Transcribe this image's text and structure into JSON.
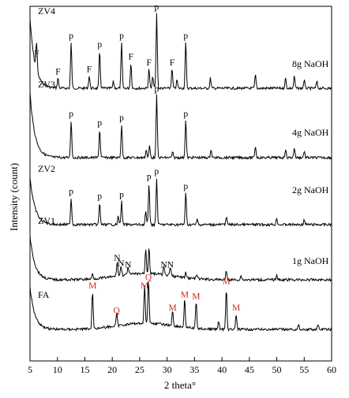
{
  "chart_data": {
    "type": "line",
    "xlabel": "2 theta°",
    "ylabel": "Intensity (count)",
    "xlim": [
      5,
      60
    ],
    "x_ticks": [
      5,
      10,
      15,
      20,
      25,
      30,
      35,
      40,
      45,
      50,
      55,
      60
    ],
    "grid": false,
    "colors": {
      "trace": "#000000",
      "fa_marker": "#cc2a1e",
      "marker": "#000000"
    },
    "series": [
      {
        "name": "ZV4",
        "condition": "8g NaOH",
        "peaks": [
          {
            "x": 6.2,
            "h": 0.34,
            "label": "F"
          },
          {
            "x": 10.1,
            "h": 0.12,
            "label": "F"
          },
          {
            "x": 12.5,
            "h": 0.55,
            "label": "p"
          },
          {
            "x": 15.8,
            "h": 0.15,
            "label": "F"
          },
          {
            "x": 17.7,
            "h": 0.45,
            "label": "p"
          },
          {
            "x": 21.7,
            "h": 0.55,
            "label": "p"
          },
          {
            "x": 23.4,
            "h": 0.3,
            "label": "F"
          },
          {
            "x": 26.7,
            "h": 0.23,
            "label": "F"
          },
          {
            "x": 28.1,
            "h": 0.9,
            "label": "p"
          },
          {
            "x": 30.9,
            "h": 0.23,
            "label": "F"
          },
          {
            "x": 33.4,
            "h": 0.55,
            "label": "p"
          },
          {
            "x": 20.2,
            "h": 0.08,
            "label": ""
          },
          {
            "x": 27.4,
            "h": 0.14,
            "label": ""
          },
          {
            "x": 31.8,
            "h": 0.1,
            "label": ""
          },
          {
            "x": 37.9,
            "h": 0.12,
            "label": ""
          },
          {
            "x": 46.1,
            "h": 0.16,
            "label": ""
          },
          {
            "x": 51.6,
            "h": 0.12,
            "label": ""
          },
          {
            "x": 53.2,
            "h": 0.14,
            "label": ""
          },
          {
            "x": 55.0,
            "h": 0.1,
            "label": ""
          },
          {
            "x": 57.3,
            "h": 0.08,
            "label": ""
          }
        ]
      },
      {
        "name": "ZV3",
        "condition": "4g NaOH",
        "peaks": [
          {
            "x": 12.5,
            "h": 0.45,
            "label": "p"
          },
          {
            "x": 17.7,
            "h": 0.34,
            "label": "p"
          },
          {
            "x": 21.7,
            "h": 0.4,
            "label": "p"
          },
          {
            "x": 28.1,
            "h": 0.75,
            "label": "p"
          },
          {
            "x": 33.4,
            "h": 0.45,
            "label": "p"
          },
          {
            "x": 26.2,
            "h": 0.1,
            "label": ""
          },
          {
            "x": 26.8,
            "h": 0.14,
            "label": ""
          },
          {
            "x": 31.0,
            "h": 0.06,
            "label": ""
          },
          {
            "x": 38.0,
            "h": 0.1,
            "label": ""
          },
          {
            "x": 46.1,
            "h": 0.14,
            "label": ""
          },
          {
            "x": 51.6,
            "h": 0.1,
            "label": ""
          },
          {
            "x": 53.2,
            "h": 0.12,
            "label": ""
          },
          {
            "x": 55.0,
            "h": 0.08,
            "label": ""
          }
        ]
      },
      {
        "name": "ZV2",
        "condition": "2g NaOH",
        "peaks": [
          {
            "x": 12.5,
            "h": 0.32,
            "label": "p"
          },
          {
            "x": 17.7,
            "h": 0.26,
            "label": "p"
          },
          {
            "x": 21.7,
            "h": 0.28,
            "label": "p"
          },
          {
            "x": 26.7,
            "h": 0.5,
            "label": "p"
          },
          {
            "x": 28.1,
            "h": 0.56,
            "label": "p"
          },
          {
            "x": 33.4,
            "h": 0.38,
            "label": "p"
          },
          {
            "x": 21.1,
            "h": 0.1,
            "label": ""
          },
          {
            "x": 26.1,
            "h": 0.15,
            "label": ""
          },
          {
            "x": 35.5,
            "h": 0.06,
            "label": ""
          },
          {
            "x": 40.8,
            "h": 0.1,
            "label": ""
          },
          {
            "x": 50.0,
            "h": 0.08,
            "label": ""
          },
          {
            "x": 55.0,
            "h": 0.06,
            "label": ""
          }
        ]
      },
      {
        "name": "ZV1",
        "condition": "1g NaOH",
        "peaks": [
          {
            "x": 20.9,
            "h": 0.18,
            "label": "N"
          },
          {
            "x": 21.6,
            "h": 0.12,
            "label": "N"
          },
          {
            "x": 22.9,
            "h": 0.1,
            "label": "N"
          },
          {
            "x": 26.1,
            "h": 0.3,
            "label": ""
          },
          {
            "x": 26.7,
            "h": 0.32,
            "label": ""
          },
          {
            "x": 29.4,
            "h": 0.1,
            "label": "N"
          },
          {
            "x": 30.6,
            "h": 0.1,
            "label": "N"
          },
          {
            "x": 16.4,
            "h": 0.06,
            "label": ""
          },
          {
            "x": 33.4,
            "h": 0.06,
            "label": ""
          },
          {
            "x": 35.4,
            "h": 0.05,
            "label": ""
          },
          {
            "x": 40.8,
            "h": 0.1,
            "label": ""
          },
          {
            "x": 43.5,
            "h": 0.05,
            "label": ""
          },
          {
            "x": 50.0,
            "h": 0.06,
            "label": ""
          }
        ]
      },
      {
        "name": "FA",
        "condition": "",
        "peaks": [
          {
            "x": 16.4,
            "h": 0.45,
            "label": "M"
          },
          {
            "x": 20.8,
            "h": 0.15,
            "label": "Q"
          },
          {
            "x": 25.9,
            "h": 0.45,
            "label": "M"
          },
          {
            "x": 26.6,
            "h": 0.55,
            "label": "Q"
          },
          {
            "x": 31.0,
            "h": 0.18,
            "label": "M"
          },
          {
            "x": 33.2,
            "h": 0.34,
            "label": "M"
          },
          {
            "x": 35.3,
            "h": 0.32,
            "label": "M"
          },
          {
            "x": 40.8,
            "h": 0.5,
            "label": "M"
          },
          {
            "x": 42.6,
            "h": 0.18,
            "label": "M"
          },
          {
            "x": 39.4,
            "h": 0.1,
            "label": ""
          },
          {
            "x": 54.0,
            "h": 0.06,
            "label": ""
          },
          {
            "x": 57.5,
            "h": 0.06,
            "label": ""
          }
        ]
      }
    ]
  }
}
